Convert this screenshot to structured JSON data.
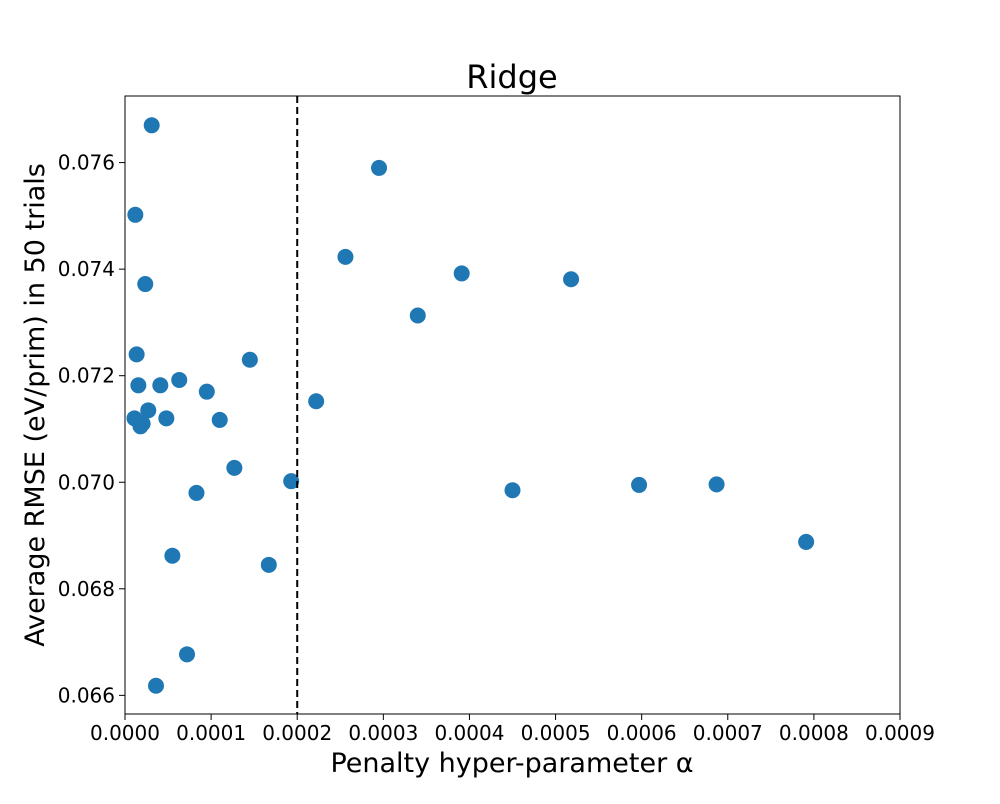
{
  "chart_data": {
    "type": "scatter",
    "title": "Ridge",
    "xlabel": "Penalty hyper-parameter α",
    "ylabel": "Average RMSE (eV/prim) in 50 trials",
    "xlim": [
      0,
      0.0009
    ],
    "ylim": [
      0.06565,
      0.07725
    ],
    "xticks": [
      0,
      0.0001,
      0.0002,
      0.0003,
      0.0004,
      0.0005,
      0.0006,
      0.0007,
      0.0008,
      0.0009
    ],
    "xtick_labels": [
      "0.0000",
      "0.0001",
      "0.0002",
      "0.0003",
      "0.0004",
      "0.0005",
      "0.0006",
      "0.0007",
      "0.0008",
      "0.0009"
    ],
    "yticks": [
      0.066,
      0.068,
      0.07,
      0.072,
      0.074,
      0.076
    ],
    "ytick_labels": [
      "0.066",
      "0.068",
      "0.070",
      "0.072",
      "0.074",
      "0.076"
    ],
    "marker_color": "#1f77b4",
    "grid": false,
    "reference_line": {
      "x": 0.0002,
      "style": "dashed",
      "color": "#000000"
    },
    "points": [
      {
        "x": 1.1e-05,
        "y": 0.0712
      },
      {
        "x": 1.2e-05,
        "y": 0.07502
      },
      {
        "x": 1.35e-05,
        "y": 0.0724
      },
      {
        "x": 1.55e-05,
        "y": 0.07182
      },
      {
        "x": 1.8e-05,
        "y": 0.07105
      },
      {
        "x": 2.05e-05,
        "y": 0.0711
      },
      {
        "x": 2.35e-05,
        "y": 0.07372
      },
      {
        "x": 2.7e-05,
        "y": 0.07135
      },
      {
        "x": 3.1e-05,
        "y": 0.0767
      },
      {
        "x": 3.6e-05,
        "y": 0.06618
      },
      {
        "x": 4.1e-05,
        "y": 0.07182
      },
      {
        "x": 4.8e-05,
        "y": 0.0712
      },
      {
        "x": 5.5e-05,
        "y": 0.06862
      },
      {
        "x": 6.3e-05,
        "y": 0.07192
      },
      {
        "x": 7.2e-05,
        "y": 0.06677
      },
      {
        "x": 8.3e-05,
        "y": 0.0698
      },
      {
        "x": 9.5e-05,
        "y": 0.0717
      },
      {
        "x": 0.00011,
        "y": 0.07117
      },
      {
        "x": 0.000127,
        "y": 0.07027
      },
      {
        "x": 0.000145,
        "y": 0.0723
      },
      {
        "x": 0.000167,
        "y": 0.06845
      },
      {
        "x": 0.000193,
        "y": 0.07002
      },
      {
        "x": 0.000222,
        "y": 0.07152
      },
      {
        "x": 0.000256,
        "y": 0.07423
      },
      {
        "x": 0.000295,
        "y": 0.0759
      },
      {
        "x": 0.00034,
        "y": 0.07313
      },
      {
        "x": 0.000391,
        "y": 0.07392
      },
      {
        "x": 0.00045,
        "y": 0.06985
      },
      {
        "x": 0.000518,
        "y": 0.07381
      },
      {
        "x": 0.000597,
        "y": 0.06995
      },
      {
        "x": 0.000687,
        "y": 0.06996
      },
      {
        "x": 0.000791,
        "y": 0.06888
      }
    ]
  }
}
